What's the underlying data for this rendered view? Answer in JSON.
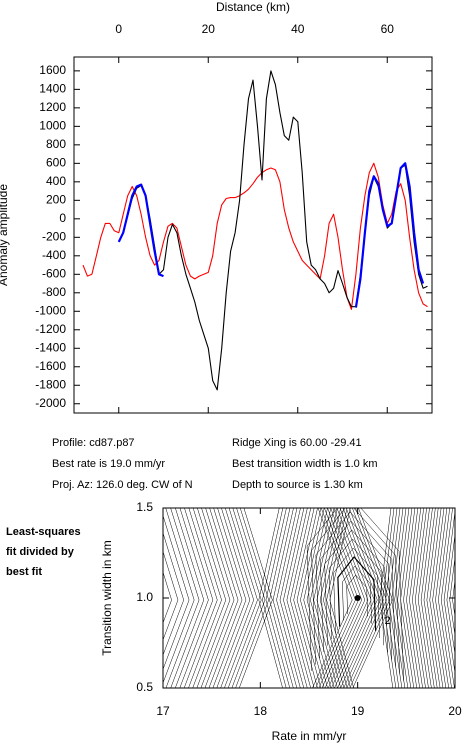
{
  "chart_data": [
    {
      "type": "line",
      "x_label": "Distance (km)",
      "y_label": "Anomaly amplitude",
      "xlim": [
        -10,
        70
      ],
      "xticks": [
        0,
        20,
        40,
        60
      ],
      "ylim": [
        -2100,
        1750
      ],
      "yticks": [
        -2000,
        -1800,
        -1600,
        -1400,
        -1200,
        -1000,
        -800,
        -600,
        -400,
        -200,
        0,
        200,
        400,
        600,
        800,
        1000,
        1200,
        1400,
        1600
      ],
      "series": [
        {
          "color": "#000000",
          "x": [
            0,
            1,
            2,
            3,
            4,
            5,
            6,
            7,
            8,
            9,
            10,
            11,
            12,
            13,
            14,
            15,
            16,
            17,
            18,
            19,
            20,
            21,
            22,
            23,
            24,
            25,
            26,
            27,
            28,
            29,
            30,
            31,
            32,
            33,
            34,
            35,
            36,
            37,
            38,
            39,
            40,
            41,
            42,
            43,
            44,
            45,
            46,
            47,
            48,
            49,
            50,
            51,
            52,
            53,
            54,
            55,
            56,
            57,
            58,
            59,
            60,
            61,
            62,
            63,
            64,
            65,
            66,
            67,
            68,
            69
          ],
          "values": [
            -250,
            -150,
            30,
            220,
            330,
            360,
            250,
            0,
            -300,
            -600,
            -550,
            -200,
            -60,
            -150,
            -400,
            -600,
            -750,
            -900,
            -1100,
            -1250,
            -1400,
            -1750,
            -1850,
            -1400,
            -800,
            -350,
            -150,
            200,
            800,
            1300,
            1500,
            1000,
            420,
            1300,
            1600,
            1450,
            1150,
            900,
            850,
            1100,
            1050,
            500,
            -250,
            -500,
            -550,
            -650,
            -700,
            -800,
            -750,
            -560,
            -700,
            -850,
            -950,
            -950,
            -600,
            -150,
            250,
            450,
            350,
            100,
            -100,
            -50,
            250,
            550,
            580,
            250,
            -250,
            -600,
            -750,
            -730
          ]
        },
        {
          "color": "#ff0000",
          "x": [
            -8,
            -7,
            -6,
            -5,
            -4,
            -3,
            -2,
            -1,
            0,
            1,
            2,
            3,
            4,
            5,
            6,
            7,
            8,
            9,
            10,
            11,
            12,
            13,
            14,
            15,
            16,
            17,
            18,
            19,
            20,
            21,
            22,
            23,
            24,
            25,
            26,
            27,
            28,
            29,
            30,
            31,
            32,
            33,
            34,
            35,
            36,
            37,
            38,
            39,
            40,
            41,
            42,
            43,
            44,
            45,
            46,
            47,
            48,
            49,
            50,
            51,
            52,
            53,
            54,
            55,
            56,
            57,
            58,
            59,
            60,
            61,
            62,
            63,
            64,
            65,
            66,
            67,
            68,
            69
          ],
          "values": [
            -500,
            -620,
            -600,
            -400,
            -200,
            -50,
            -50,
            -130,
            -150,
            50,
            250,
            350,
            250,
            50,
            -200,
            -400,
            -500,
            -450,
            -250,
            -80,
            -50,
            -100,
            -300,
            -500,
            -620,
            -650,
            -620,
            -600,
            -580,
            -400,
            -50,
            150,
            220,
            230,
            230,
            250,
            280,
            320,
            380,
            450,
            500,
            530,
            550,
            530,
            400,
            100,
            -100,
            -250,
            -350,
            -450,
            -500,
            -550,
            -600,
            -650,
            -400,
            -50,
            50,
            -200,
            -550,
            -850,
            -980,
            -600,
            -100,
            250,
            500,
            600,
            450,
            150,
            -50,
            50,
            300,
            380,
            200,
            -200,
            -550,
            -800,
            -920,
            -950
          ]
        },
        {
          "color": "#0000ff",
          "x": [
            0,
            1,
            2,
            3,
            4,
            5,
            6,
            7,
            8,
            9,
            10,
            11,
            53,
            54,
            55,
            56,
            57,
            58,
            59,
            60,
            61,
            62,
            63,
            64,
            65,
            66,
            67,
            68
          ],
          "values": [
            -250,
            -150,
            50,
            250,
            350,
            370,
            250,
            -50,
            -350,
            -600,
            -620,
            null,
            -960,
            -650,
            -150,
            300,
            460,
            380,
            100,
            -80,
            -50,
            250,
            550,
            600,
            350,
            -150,
            -550,
            -700
          ]
        }
      ]
    },
    {
      "type": "contour",
      "x_label": "Rate in mm/yr",
      "y_label": "Transition width in km",
      "xlim": [
        17,
        20
      ],
      "xticks": [
        17,
        18,
        19,
        20
      ],
      "ylim": [
        0.5,
        1.5
      ],
      "yticks": [
        0.5,
        {
          "value": 1,
          "label": "1.0"
        },
        1.5
      ],
      "best_fit": {
        "x": 19.0,
        "y": 1.0,
        "color": "#000000"
      },
      "contour_labels": [
        "2"
      ],
      "note": [
        "Least-squares",
        "fit divided by",
        "best fit"
      ]
    }
  ],
  "info": {
    "left": [
      "Profile: cd87.p87",
      "Best rate is 19.0 mm/yr",
      "Proj. Az: 126.0 deg. CW of N"
    ],
    "right": [
      "Ridge Xing is 60.00 -29.41",
      "Best transition width is 1.0 km",
      "Depth to source is   1.30 km"
    ]
  }
}
